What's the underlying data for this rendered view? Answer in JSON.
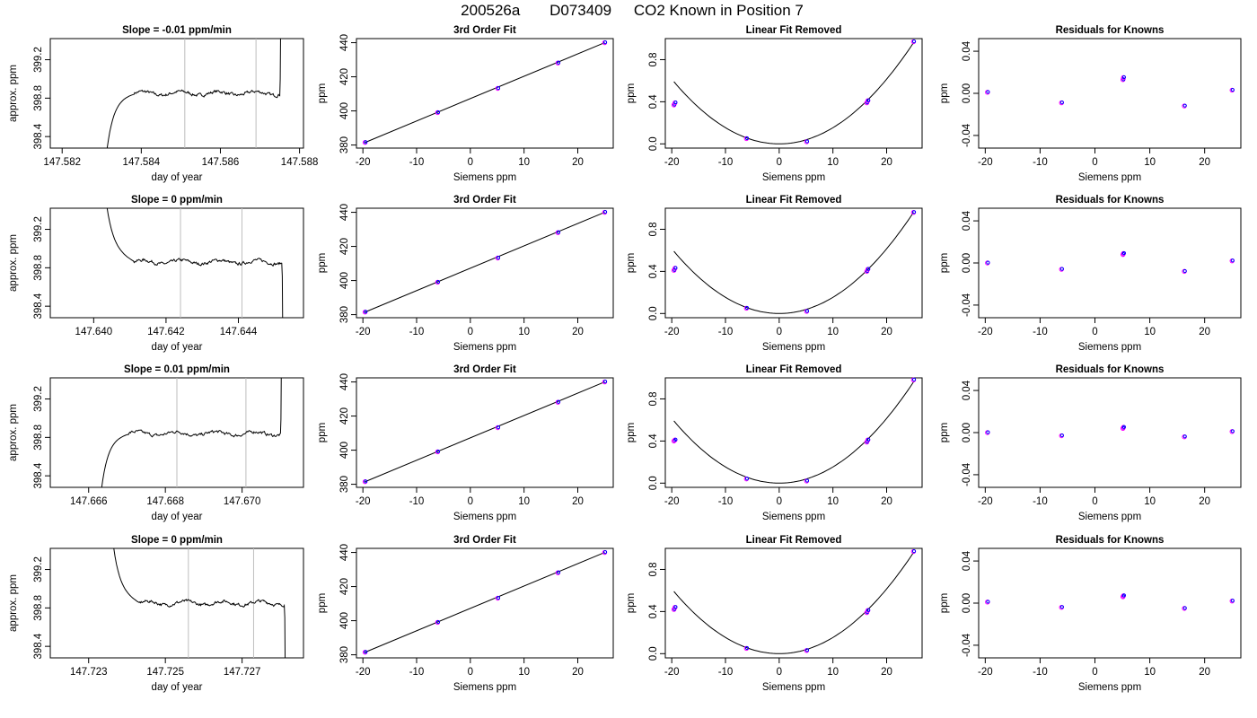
{
  "figure": {
    "title_parts": [
      "200526a",
      "D073409",
      "CO2 Known in Position  7"
    ]
  },
  "rows": [
    {
      "slope": {
        "type": "line",
        "title": "Slope =  -0.01  ppm/min",
        "xlabel": "day of year",
        "ylabel": "approx. ppm",
        "xlim": [
          147.5817,
          147.5881
        ],
        "ylim": [
          398.28,
          399.42
        ],
        "xticks": [
          147.582,
          147.584,
          147.586,
          147.588
        ],
        "xtick_labels": [
          "147.582",
          "147.584",
          "147.586",
          "147.588"
        ],
        "yticks": [
          398.4,
          398.8,
          399.2
        ],
        "ytick_labels": [
          "398.4",
          "398.8",
          "399.2"
        ],
        "vlines": [
          147.5851,
          147.5869
        ],
        "trace": {
          "x_start": 147.5831,
          "plateau_start": 147.5838,
          "x_end": 147.5875,
          "base": 398.85,
          "noise": 0.025,
          "rise_end": true
        }
      },
      "fit": {
        "type": "scatter",
        "title": "3rd Order Fit",
        "xlabel": "Siemens ppm",
        "ylabel": "ppm",
        "xlim": [
          -21.2,
          26.6
        ],
        "ylim": [
          378.2,
          442.4
        ],
        "xticks": [
          -20,
          -10,
          0,
          10,
          20
        ],
        "xtick_labels": [
          "-20",
          "-10",
          "0",
          "10",
          "20"
        ],
        "yticks": [
          380,
          400,
          420,
          440
        ],
        "ytick_labels": [
          "380",
          "400",
          "420",
          "440"
        ],
        "points": [
          [
            -19.6,
            381.5
          ],
          [
            -6.1,
            399.0
          ],
          [
            5.1,
            413.2
          ],
          [
            16.3,
            428.1
          ],
          [
            25.0,
            440.0
          ]
        ]
      },
      "linrem": {
        "type": "scatter",
        "title": "Linear Fit Removed",
        "xlabel": "Siemens ppm",
        "ylabel": "ppm",
        "xlim": [
          -21.2,
          26.6
        ],
        "ylim": [
          -0.04,
          1.0
        ],
        "xticks": [
          -20,
          -10,
          0,
          10,
          20
        ],
        "xtick_labels": [
          "-20",
          "-10",
          "0",
          "10",
          "20"
        ],
        "yticks": [
          0.0,
          0.4,
          0.8
        ],
        "ytick_labels": [
          "0.0",
          "0.4",
          "0.8"
        ],
        "points": [
          [
            -19.6,
            0.37
          ],
          [
            -19.4,
            0.39
          ],
          [
            -6.1,
            0.05
          ],
          [
            5.1,
            0.02
          ],
          [
            16.3,
            0.39
          ],
          [
            16.5,
            0.41
          ],
          [
            25.0,
            0.97
          ]
        ],
        "curve": {
          "a": 0.001537,
          "xmin": -19.6,
          "xmax": 25.0
        }
      },
      "resid": {
        "type": "scatter",
        "title": "Residuals for Knowns",
        "xlabel": "Siemens ppm",
        "ylabel": "ppm",
        "xlim": [
          -21.2,
          26.6
        ],
        "ylim": [
          -0.052,
          0.052
        ],
        "xticks": [
          -20,
          -10,
          0,
          10,
          20
        ],
        "xtick_labels": [
          "-20",
          "-10",
          "0",
          "10",
          "20"
        ],
        "yticks": [
          -0.04,
          0.0,
          0.04
        ],
        "ytick_labels": [
          "-0.04",
          "0.00",
          "0.04"
        ],
        "points": [
          [
            -19.6,
            0.001
          ],
          [
            -6.1,
            -0.009
          ],
          [
            5.1,
            0.013
          ],
          [
            5.2,
            0.015
          ],
          [
            16.3,
            -0.012
          ],
          [
            25.0,
            0.003
          ]
        ]
      }
    },
    {
      "slope": {
        "type": "line",
        "title": "Slope =  0  ppm/min",
        "xlabel": "day of year",
        "ylabel": "approx. ppm",
        "xlim": [
          147.6388,
          147.6458
        ],
        "ylim": [
          398.28,
          399.42
        ],
        "xticks": [
          147.64,
          147.642,
          147.644
        ],
        "xtick_labels": [
          "147.640",
          "147.642",
          "147.644"
        ],
        "yticks": [
          398.4,
          398.8,
          399.2
        ],
        "ytick_labels": [
          "398.4",
          "398.8",
          "399.2"
        ],
        "vlines": [
          147.6424,
          147.6441
        ],
        "trace": {
          "x_start": 147.6403,
          "plateau_start": 147.6411,
          "x_end": 147.6452,
          "base": 398.86,
          "noise": 0.025,
          "fall_start": true,
          "fall_end": true
        }
      },
      "fit": {
        "type": "scatter",
        "title": "3rd Order Fit",
        "xlabel": "Siemens ppm",
        "ylabel": "ppm",
        "xlim": [
          -21.2,
          26.6
        ],
        "ylim": [
          378.2,
          442.4
        ],
        "xticks": [
          -20,
          -10,
          0,
          10,
          20
        ],
        "xtick_labels": [
          "-20",
          "-10",
          "0",
          "10",
          "20"
        ],
        "yticks": [
          380,
          400,
          420,
          440
        ],
        "ytick_labels": [
          "380",
          "400",
          "420",
          "440"
        ],
        "points": [
          [
            -19.6,
            381.5
          ],
          [
            -6.1,
            399.0
          ],
          [
            5.1,
            413.2
          ],
          [
            16.3,
            428.1
          ],
          [
            25.0,
            440.0
          ]
        ]
      },
      "linrem": {
        "type": "scatter",
        "title": "Linear Fit Removed",
        "xlabel": "Siemens ppm",
        "ylabel": "ppm",
        "xlim": [
          -21.2,
          26.6
        ],
        "ylim": [
          -0.04,
          1.0
        ],
        "xticks": [
          -20,
          -10,
          0,
          10,
          20
        ],
        "xtick_labels": [
          "-20",
          "-10",
          "0",
          "10",
          "20"
        ],
        "yticks": [
          0.0,
          0.4,
          0.8
        ],
        "ytick_labels": [
          "0.0",
          "0.4",
          "0.8"
        ],
        "points": [
          [
            -19.6,
            0.41
          ],
          [
            -19.4,
            0.43
          ],
          [
            -6.1,
            0.05
          ],
          [
            5.1,
            0.02
          ],
          [
            16.3,
            0.4
          ],
          [
            16.5,
            0.42
          ],
          [
            25.0,
            0.96
          ]
        ],
        "curve": {
          "a": 0.001537,
          "xmin": -19.6,
          "xmax": 25.0
        }
      },
      "resid": {
        "type": "scatter",
        "title": "Residuals for Knowns",
        "xlabel": "Siemens ppm",
        "ylabel": "ppm",
        "xlim": [
          -21.2,
          26.6
        ],
        "ylim": [
          -0.052,
          0.052
        ],
        "xticks": [
          -20,
          -10,
          0,
          10,
          20
        ],
        "xtick_labels": [
          "-20",
          "-10",
          "0",
          "10",
          "20"
        ],
        "yticks": [
          -0.04,
          0.0,
          0.04
        ],
        "ytick_labels": [
          "-0.04",
          "0.00",
          "0.04"
        ],
        "points": [
          [
            -19.6,
            0.0
          ],
          [
            -6.1,
            -0.006
          ],
          [
            5.1,
            0.008
          ],
          [
            5.2,
            0.009
          ],
          [
            16.3,
            -0.008
          ],
          [
            25.0,
            0.002
          ]
        ]
      }
    },
    {
      "slope": {
        "type": "line",
        "title": "Slope =  0.01  ppm/min",
        "xlabel": "day of year",
        "ylabel": "approx. ppm",
        "xlim": [
          147.665,
          147.6716
        ],
        "ylim": [
          398.28,
          399.42
        ],
        "xticks": [
          147.666,
          147.668,
          147.67
        ],
        "xtick_labels": [
          "147.666",
          "147.668",
          "147.670"
        ],
        "yticks": [
          398.4,
          398.8,
          399.2
        ],
        "ytick_labels": [
          "398.4",
          "398.8",
          "399.2"
        ],
        "vlines": [
          147.6683,
          147.6701
        ],
        "trace": {
          "x_start": 147.6663,
          "plateau_start": 147.667,
          "x_end": 147.671,
          "base": 398.84,
          "noise": 0.025,
          "rise_end": true
        }
      },
      "fit": {
        "type": "scatter",
        "title": "3rd Order Fit",
        "xlabel": "Siemens ppm",
        "ylabel": "ppm",
        "xlim": [
          -21.2,
          26.6
        ],
        "ylim": [
          378.2,
          442.4
        ],
        "xticks": [
          -20,
          -10,
          0,
          10,
          20
        ],
        "xtick_labels": [
          "-20",
          "-10",
          "0",
          "10",
          "20"
        ],
        "yticks": [
          380,
          400,
          420,
          440
        ],
        "ytick_labels": [
          "380",
          "400",
          "420",
          "440"
        ],
        "points": [
          [
            -19.6,
            381.5
          ],
          [
            -6.1,
            399.0
          ],
          [
            5.1,
            413.2
          ],
          [
            16.3,
            428.1
          ],
          [
            25.0,
            440.0
          ]
        ]
      },
      "linrem": {
        "type": "scatter",
        "title": "Linear Fit Removed",
        "xlabel": "Siemens ppm",
        "ylabel": "ppm",
        "xlim": [
          -21.2,
          26.6
        ],
        "ylim": [
          -0.04,
          1.0
        ],
        "xticks": [
          -20,
          -10,
          0,
          10,
          20
        ],
        "xtick_labels": [
          "-20",
          "-10",
          "0",
          "10",
          "20"
        ],
        "yticks": [
          0.0,
          0.4,
          0.8
        ],
        "ytick_labels": [
          "0.0",
          "0.4",
          "0.8"
        ],
        "points": [
          [
            -19.6,
            0.4
          ],
          [
            -19.4,
            0.41
          ],
          [
            -6.1,
            0.04
          ],
          [
            5.1,
            0.02
          ],
          [
            16.3,
            0.39
          ],
          [
            16.5,
            0.41
          ],
          [
            25.0,
            0.98
          ]
        ],
        "curve": {
          "a": 0.001537,
          "xmin": -19.6,
          "xmax": 25.0
        }
      },
      "resid": {
        "type": "scatter",
        "title": "Residuals for Knowns",
        "xlabel": "Siemens ppm",
        "ylabel": "ppm",
        "xlim": [
          -21.2,
          26.6
        ],
        "ylim": [
          -0.052,
          0.052
        ],
        "xticks": [
          -20,
          -10,
          0,
          10,
          20
        ],
        "xtick_labels": [
          "-20",
          "-10",
          "0",
          "10",
          "20"
        ],
        "yticks": [
          -0.04,
          0.0,
          0.04
        ],
        "ytick_labels": [
          "-0.04",
          "0.00",
          "0.04"
        ],
        "points": [
          [
            -19.6,
            0.0
          ],
          [
            -6.1,
            -0.003
          ],
          [
            5.1,
            0.004
          ],
          [
            5.2,
            0.005
          ],
          [
            16.3,
            -0.004
          ],
          [
            25.0,
            0.001
          ]
        ]
      }
    },
    {
      "slope": {
        "type": "line",
        "title": "Slope =  0  ppm/min",
        "xlabel": "day of year",
        "ylabel": "approx. ppm",
        "xlim": [
          147.722,
          147.7286
        ],
        "ylim": [
          398.28,
          399.42
        ],
        "xticks": [
          147.723,
          147.725,
          147.727
        ],
        "xtick_labels": [
          "147.723",
          "147.725",
          "147.727"
        ],
        "yticks": [
          398.4,
          398.8,
          399.2
        ],
        "ytick_labels": [
          "398.4",
          "398.8",
          "399.2"
        ],
        "vlines": [
          147.7256,
          147.7273
        ],
        "trace": {
          "x_start": 147.7236,
          "plateau_start": 147.7243,
          "x_end": 147.7281,
          "base": 398.85,
          "noise": 0.025,
          "fall_start": true,
          "fall_end": true
        }
      },
      "fit": {
        "type": "scatter",
        "title": "3rd Order Fit",
        "xlabel": "Siemens ppm",
        "ylabel": "ppm",
        "xlim": [
          -21.2,
          26.6
        ],
        "ylim": [
          378.2,
          442.4
        ],
        "xticks": [
          -20,
          -10,
          0,
          10,
          20
        ],
        "xtick_labels": [
          "-20",
          "-10",
          "0",
          "10",
          "20"
        ],
        "yticks": [
          380,
          400,
          420,
          440
        ],
        "ytick_labels": [
          "380",
          "400",
          "420",
          "440"
        ],
        "points": [
          [
            -19.6,
            381.5
          ],
          [
            -6.1,
            399.0
          ],
          [
            5.1,
            413.2
          ],
          [
            16.3,
            428.1
          ],
          [
            25.0,
            440.0
          ]
        ]
      },
      "linrem": {
        "type": "scatter",
        "title": "Linear Fit Removed",
        "xlabel": "Siemens ppm",
        "ylabel": "ppm",
        "xlim": [
          -21.2,
          26.6
        ],
        "ylim": [
          -0.04,
          1.0
        ],
        "xticks": [
          -20,
          -10,
          0,
          10,
          20
        ],
        "xtick_labels": [
          "-20",
          "-10",
          "0",
          "10",
          "20"
        ],
        "yticks": [
          0.0,
          0.4,
          0.8
        ],
        "ytick_labels": [
          "0.0",
          "0.4",
          "0.8"
        ],
        "points": [
          [
            -19.6,
            0.42
          ],
          [
            -19.4,
            0.44
          ],
          [
            -6.1,
            0.05
          ],
          [
            5.1,
            0.03
          ],
          [
            16.3,
            0.39
          ],
          [
            16.5,
            0.41
          ],
          [
            25.0,
            0.97
          ]
        ],
        "curve": {
          "a": 0.001537,
          "xmin": -19.6,
          "xmax": 25.0
        }
      },
      "resid": {
        "type": "scatter",
        "title": "Residuals for Knowns",
        "xlabel": "Siemens ppm",
        "ylabel": "ppm",
        "xlim": [
          -21.2,
          26.6
        ],
        "ylim": [
          -0.052,
          0.052
        ],
        "xticks": [
          -20,
          -10,
          0,
          10,
          20
        ],
        "xtick_labels": [
          "-20",
          "-10",
          "0",
          "10",
          "20"
        ],
        "yticks": [
          -0.04,
          0.0,
          0.04
        ],
        "ytick_labels": [
          "-0.04",
          "0.00",
          "0.04"
        ],
        "points": [
          [
            -19.6,
            0.001
          ],
          [
            -6.1,
            -0.004
          ],
          [
            5.1,
            0.006
          ],
          [
            5.2,
            0.007
          ],
          [
            16.3,
            -0.005
          ],
          [
            25.0,
            0.002
          ]
        ]
      }
    }
  ],
  "colors": {
    "line": "#000000",
    "vline": "#bebebe",
    "point_primary": "#0000ff",
    "point_secondary": "#ff00ff"
  }
}
